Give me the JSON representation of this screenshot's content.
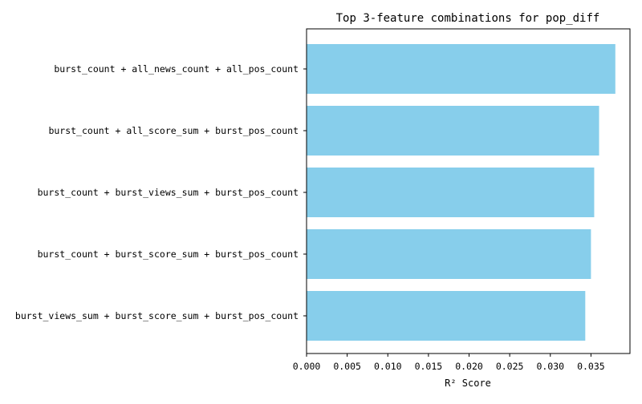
{
  "chart_data": {
    "type": "bar",
    "orientation": "horizontal",
    "title": "Top 3-feature combinations for pop_diff",
    "xlabel": "R² Score",
    "ylabel": "",
    "categories": [
      "burst_count + all_news_count + all_pos_count",
      "burst_count + all_score_sum + burst_pos_count",
      "burst_count + burst_views_sum + burst_pos_count",
      "burst_count + burst_score_sum + burst_pos_count",
      "burst_views_sum + burst_score_sum + burst_pos_count"
    ],
    "values": [
      0.038,
      0.036,
      0.0354,
      0.035,
      0.0343
    ],
    "xlim": [
      0.0,
      0.0398
    ],
    "xticks": [
      0.0,
      0.005,
      0.01,
      0.015,
      0.02,
      0.025,
      0.03,
      0.035
    ],
    "xtick_labels": [
      "0.000",
      "0.005",
      "0.010",
      "0.015",
      "0.020",
      "0.025",
      "0.030",
      "0.035"
    ],
    "bar_color": "#87CEEB",
    "grid": false,
    "legend": "none"
  }
}
